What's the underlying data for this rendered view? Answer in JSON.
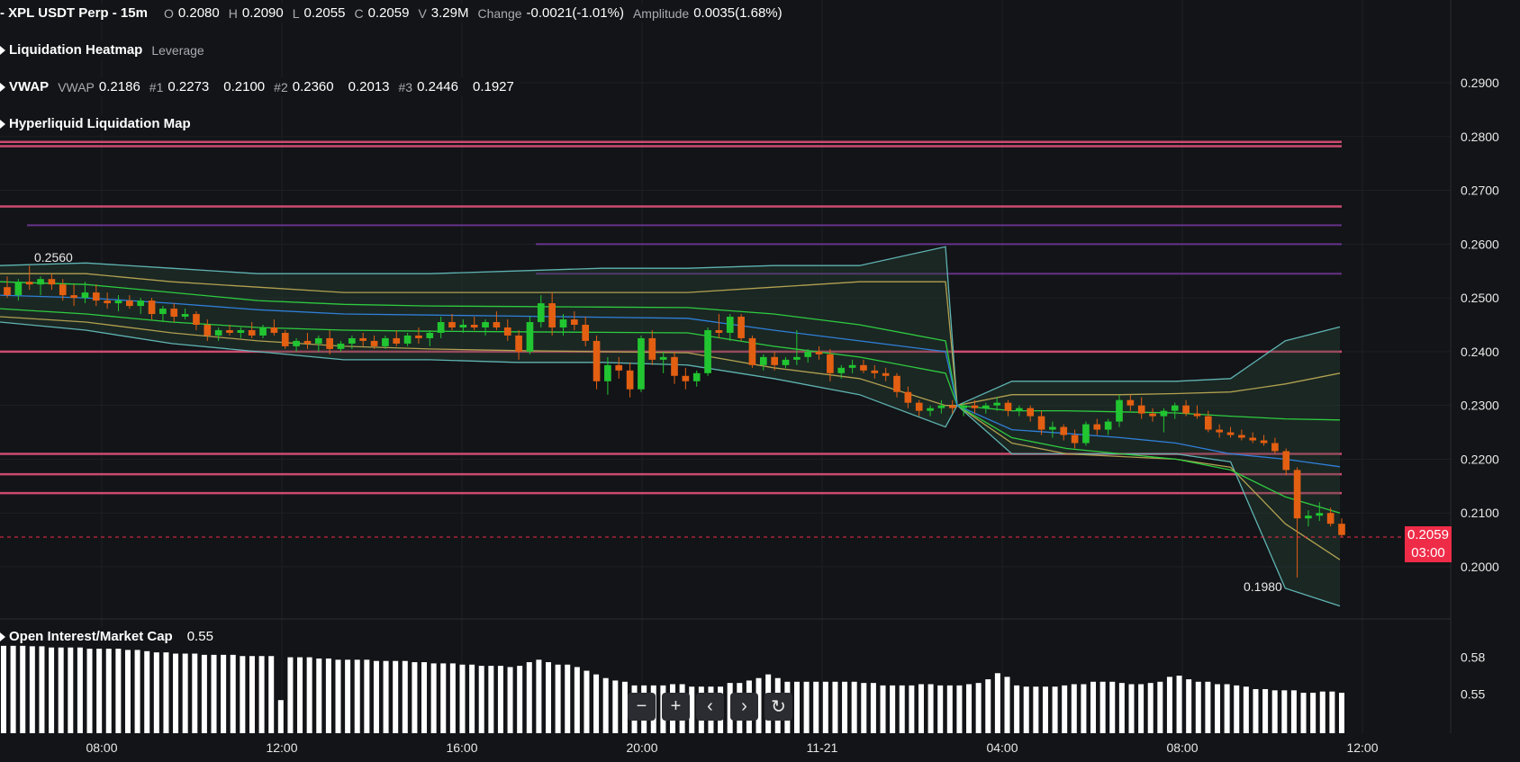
{
  "header": {
    "symbol": "XPL USDT Perp - 15m",
    "open_label": "O",
    "open": "0.2080",
    "high_label": "H",
    "high": "0.2090",
    "low_label": "L",
    "low": "0.2055",
    "close_label": "C",
    "close": "0.2059",
    "volume_label": "V",
    "volume": "3.29M",
    "change_label": "Change",
    "change": "-0.0021(-1.01%)",
    "amplitude_label": "Amplitude",
    "amplitude": "0.0035(1.68%)"
  },
  "indicators": {
    "liq_heatmap": {
      "name": "Liquidation Heatmap",
      "param": "Leverage"
    },
    "vwap": {
      "name": "VWAP",
      "vwap_label": "VWAP",
      "vwap": "0.2186",
      "b1_label": "#1",
      "b1_upper": "0.2273",
      "b1_lower": "0.2100",
      "b2_label": "#2",
      "b2_upper": "0.2360",
      "b2_lower": "0.2013",
      "b3_label": "#3",
      "b3_upper": "0.2446",
      "b3_lower": "0.1927"
    },
    "hl_liq_map": {
      "name": "Hyperliquid Liquidation Map"
    },
    "oi_mc": {
      "name": "Open Interest/Market Cap",
      "value": "0.55"
    }
  },
  "price_axis": {
    "ticks": [
      "0.2900",
      "0.2800",
      "0.2700",
      "0.2600",
      "0.2500",
      "0.2400",
      "0.2300",
      "0.2200",
      "0.2100",
      "0.2000"
    ],
    "current_price": "0.2059",
    "countdown": "03:00"
  },
  "oi_axis": {
    "ticks": [
      "0.58",
      "0.55"
    ]
  },
  "time_axis": {
    "ticks": [
      "08:00",
      "12:00",
      "16:00",
      "20:00",
      "11-21",
      "04:00",
      "08:00",
      "12:00"
    ]
  },
  "annotations": {
    "high_label": "0.2560",
    "low_label": "0.1980"
  },
  "nav_buttons": {
    "zoom_out": "−",
    "zoom_in": "+",
    "scroll_left": "‹",
    "scroll_right": "›",
    "reset": "↻"
  },
  "colors": {
    "background": "#131417",
    "up": "#21c531",
    "down": "#e35f12",
    "liq_line_strong": "#e0527a",
    "liq_line_purple": "#7a3aa6",
    "current_price": "#ef2c48",
    "vwap_mid": "#2f7fd8",
    "vwap_band1": "#2ecc40",
    "vwap_band2": "#b0a050",
    "vwap_band3": "#5fb3b3"
  },
  "chart_data": {
    "type": "candlestick",
    "title": "",
    "candles": [
      {
        "o": 0.252,
        "h": 0.254,
        "l": 0.25,
        "c": 0.2505
      },
      {
        "o": 0.2505,
        "h": 0.2535,
        "l": 0.2495,
        "c": 0.253
      },
      {
        "o": 0.253,
        "h": 0.256,
        "l": 0.2515,
        "c": 0.2525
      },
      {
        "o": 0.2525,
        "h": 0.254,
        "l": 0.2505,
        "c": 0.2535
      },
      {
        "o": 0.2535,
        "h": 0.2545,
        "l": 0.2515,
        "c": 0.2525
      },
      {
        "o": 0.2525,
        "h": 0.2535,
        "l": 0.2495,
        "c": 0.2505
      },
      {
        "o": 0.2505,
        "h": 0.2525,
        "l": 0.2485,
        "c": 0.25
      },
      {
        "o": 0.25,
        "h": 0.253,
        "l": 0.249,
        "c": 0.251
      },
      {
        "o": 0.251,
        "h": 0.2525,
        "l": 0.2485,
        "c": 0.2495
      },
      {
        "o": 0.2495,
        "h": 0.251,
        "l": 0.248,
        "c": 0.249
      },
      {
        "o": 0.249,
        "h": 0.2505,
        "l": 0.2475,
        "c": 0.2495
      },
      {
        "o": 0.2495,
        "h": 0.2505,
        "l": 0.248,
        "c": 0.2485
      },
      {
        "o": 0.2485,
        "h": 0.25,
        "l": 0.247,
        "c": 0.2495
      },
      {
        "o": 0.2495,
        "h": 0.25,
        "l": 0.246,
        "c": 0.247
      },
      {
        "o": 0.247,
        "h": 0.2485,
        "l": 0.2455,
        "c": 0.248
      },
      {
        "o": 0.248,
        "h": 0.249,
        "l": 0.2455,
        "c": 0.2465
      },
      {
        "o": 0.2465,
        "h": 0.248,
        "l": 0.246,
        "c": 0.247
      },
      {
        "o": 0.247,
        "h": 0.2475,
        "l": 0.244,
        "c": 0.245
      },
      {
        "o": 0.245,
        "h": 0.246,
        "l": 0.242,
        "c": 0.243
      },
      {
        "o": 0.243,
        "h": 0.2445,
        "l": 0.242,
        "c": 0.244
      },
      {
        "o": 0.244,
        "h": 0.245,
        "l": 0.243,
        "c": 0.2435
      },
      {
        "o": 0.2435,
        "h": 0.2445,
        "l": 0.2425,
        "c": 0.244
      },
      {
        "o": 0.244,
        "h": 0.2455,
        "l": 0.2425,
        "c": 0.243
      },
      {
        "o": 0.243,
        "h": 0.245,
        "l": 0.2425,
        "c": 0.2445
      },
      {
        "o": 0.2445,
        "h": 0.246,
        "l": 0.243,
        "c": 0.2435
      },
      {
        "o": 0.2435,
        "h": 0.244,
        "l": 0.2405,
        "c": 0.241
      },
      {
        "o": 0.241,
        "h": 0.2425,
        "l": 0.24,
        "c": 0.242
      },
      {
        "o": 0.242,
        "h": 0.2435,
        "l": 0.2405,
        "c": 0.2415
      },
      {
        "o": 0.2415,
        "h": 0.243,
        "l": 0.24,
        "c": 0.2425
      },
      {
        "o": 0.2425,
        "h": 0.244,
        "l": 0.2395,
        "c": 0.2405
      },
      {
        "o": 0.2405,
        "h": 0.242,
        "l": 0.24,
        "c": 0.2415
      },
      {
        "o": 0.2415,
        "h": 0.243,
        "l": 0.2405,
        "c": 0.2425
      },
      {
        "o": 0.2425,
        "h": 0.2435,
        "l": 0.241,
        "c": 0.242
      },
      {
        "o": 0.242,
        "h": 0.243,
        "l": 0.2405,
        "c": 0.241
      },
      {
        "o": 0.241,
        "h": 0.243,
        "l": 0.2405,
        "c": 0.2425
      },
      {
        "o": 0.2425,
        "h": 0.244,
        "l": 0.241,
        "c": 0.2415
      },
      {
        "o": 0.2415,
        "h": 0.2435,
        "l": 0.241,
        "c": 0.243
      },
      {
        "o": 0.243,
        "h": 0.2445,
        "l": 0.2415,
        "c": 0.2425
      },
      {
        "o": 0.2425,
        "h": 0.244,
        "l": 0.241,
        "c": 0.2435
      },
      {
        "o": 0.2435,
        "h": 0.2465,
        "l": 0.2425,
        "c": 0.2455
      },
      {
        "o": 0.2455,
        "h": 0.247,
        "l": 0.244,
        "c": 0.2445
      },
      {
        "o": 0.2445,
        "h": 0.246,
        "l": 0.2435,
        "c": 0.245
      },
      {
        "o": 0.245,
        "h": 0.2465,
        "l": 0.244,
        "c": 0.2445
      },
      {
        "o": 0.2445,
        "h": 0.246,
        "l": 0.243,
        "c": 0.2455
      },
      {
        "o": 0.2455,
        "h": 0.2475,
        "l": 0.244,
        "c": 0.2445
      },
      {
        "o": 0.2445,
        "h": 0.246,
        "l": 0.242,
        "c": 0.243
      },
      {
        "o": 0.243,
        "h": 0.244,
        "l": 0.2385,
        "c": 0.24
      },
      {
        "o": 0.24,
        "h": 0.2465,
        "l": 0.2395,
        "c": 0.2455
      },
      {
        "o": 0.2455,
        "h": 0.2505,
        "l": 0.2445,
        "c": 0.249
      },
      {
        "o": 0.249,
        "h": 0.251,
        "l": 0.243,
        "c": 0.2445
      },
      {
        "o": 0.2445,
        "h": 0.247,
        "l": 0.243,
        "c": 0.246
      },
      {
        "o": 0.246,
        "h": 0.2475,
        "l": 0.244,
        "c": 0.245
      },
      {
        "o": 0.245,
        "h": 0.2465,
        "l": 0.241,
        "c": 0.242
      },
      {
        "o": 0.242,
        "h": 0.243,
        "l": 0.233,
        "c": 0.2345
      },
      {
        "o": 0.2345,
        "h": 0.239,
        "l": 0.232,
        "c": 0.2375
      },
      {
        "o": 0.2375,
        "h": 0.239,
        "l": 0.235,
        "c": 0.2365
      },
      {
        "o": 0.2365,
        "h": 0.238,
        "l": 0.2315,
        "c": 0.233
      },
      {
        "o": 0.233,
        "h": 0.243,
        "l": 0.2325,
        "c": 0.2425
      },
      {
        "o": 0.2425,
        "h": 0.244,
        "l": 0.2375,
        "c": 0.2385
      },
      {
        "o": 0.2385,
        "h": 0.24,
        "l": 0.236,
        "c": 0.239
      },
      {
        "o": 0.239,
        "h": 0.24,
        "l": 0.234,
        "c": 0.2355
      },
      {
        "o": 0.2355,
        "h": 0.237,
        "l": 0.233,
        "c": 0.2345
      },
      {
        "o": 0.2345,
        "h": 0.2365,
        "l": 0.2335,
        "c": 0.236
      },
      {
        "o": 0.236,
        "h": 0.2445,
        "l": 0.2355,
        "c": 0.244
      },
      {
        "o": 0.244,
        "h": 0.247,
        "l": 0.2425,
        "c": 0.2435
      },
      {
        "o": 0.2435,
        "h": 0.247,
        "l": 0.242,
        "c": 0.2465
      },
      {
        "o": 0.2465,
        "h": 0.247,
        "l": 0.242,
        "c": 0.2425
      },
      {
        "o": 0.2425,
        "h": 0.243,
        "l": 0.237,
        "c": 0.2375
      },
      {
        "o": 0.2375,
        "h": 0.2395,
        "l": 0.2365,
        "c": 0.239
      },
      {
        "o": 0.239,
        "h": 0.24,
        "l": 0.2365,
        "c": 0.2375
      },
      {
        "o": 0.2375,
        "h": 0.239,
        "l": 0.237,
        "c": 0.2385
      },
      {
        "o": 0.2385,
        "h": 0.244,
        "l": 0.2375,
        "c": 0.239
      },
      {
        "o": 0.239,
        "h": 0.2405,
        "l": 0.238,
        "c": 0.24
      },
      {
        "o": 0.24,
        "h": 0.241,
        "l": 0.2385,
        "c": 0.2395
      },
      {
        "o": 0.2395,
        "h": 0.2405,
        "l": 0.2345,
        "c": 0.236
      },
      {
        "o": 0.236,
        "h": 0.2375,
        "l": 0.235,
        "c": 0.237
      },
      {
        "o": 0.237,
        "h": 0.2385,
        "l": 0.236,
        "c": 0.2375
      },
      {
        "o": 0.2375,
        "h": 0.2385,
        "l": 0.236,
        "c": 0.2365
      },
      {
        "o": 0.2365,
        "h": 0.2375,
        "l": 0.235,
        "c": 0.236
      },
      {
        "o": 0.236,
        "h": 0.237,
        "l": 0.2345,
        "c": 0.2355
      },
      {
        "o": 0.2355,
        "h": 0.236,
        "l": 0.2315,
        "c": 0.2325
      },
      {
        "o": 0.2325,
        "h": 0.2335,
        "l": 0.2295,
        "c": 0.2305
      },
      {
        "o": 0.2305,
        "h": 0.231,
        "l": 0.228,
        "c": 0.229
      },
      {
        "o": 0.229,
        "h": 0.23,
        "l": 0.228,
        "c": 0.2295
      },
      {
        "o": 0.2295,
        "h": 0.231,
        "l": 0.2285,
        "c": 0.23
      },
      {
        "o": 0.23,
        "h": 0.231,
        "l": 0.2285,
        "c": 0.2295
      },
      {
        "o": 0.2295,
        "h": 0.2305,
        "l": 0.228,
        "c": 0.23
      },
      {
        "o": 0.23,
        "h": 0.231,
        "l": 0.2285,
        "c": 0.2295
      },
      {
        "o": 0.2295,
        "h": 0.2305,
        "l": 0.2285,
        "c": 0.23
      },
      {
        "o": 0.23,
        "h": 0.2315,
        "l": 0.229,
        "c": 0.2305
      },
      {
        "o": 0.2305,
        "h": 0.231,
        "l": 0.228,
        "c": 0.229
      },
      {
        "o": 0.229,
        "h": 0.23,
        "l": 0.228,
        "c": 0.2295
      },
      {
        "o": 0.2295,
        "h": 0.23,
        "l": 0.227,
        "c": 0.228
      },
      {
        "o": 0.228,
        "h": 0.229,
        "l": 0.2245,
        "c": 0.2255
      },
      {
        "o": 0.2255,
        "h": 0.227,
        "l": 0.224,
        "c": 0.226
      },
      {
        "o": 0.226,
        "h": 0.2265,
        "l": 0.2235,
        "c": 0.2245
      },
      {
        "o": 0.2245,
        "h": 0.2255,
        "l": 0.222,
        "c": 0.223
      },
      {
        "o": 0.223,
        "h": 0.227,
        "l": 0.2225,
        "c": 0.2265
      },
      {
        "o": 0.2265,
        "h": 0.2275,
        "l": 0.2245,
        "c": 0.2255
      },
      {
        "o": 0.2255,
        "h": 0.2275,
        "l": 0.2245,
        "c": 0.227
      },
      {
        "o": 0.227,
        "h": 0.232,
        "l": 0.226,
        "c": 0.231
      },
      {
        "o": 0.231,
        "h": 0.232,
        "l": 0.229,
        "c": 0.23
      },
      {
        "o": 0.23,
        "h": 0.2315,
        "l": 0.2275,
        "c": 0.2285
      },
      {
        "o": 0.2285,
        "h": 0.2295,
        "l": 0.227,
        "c": 0.228
      },
      {
        "o": 0.228,
        "h": 0.2295,
        "l": 0.225,
        "c": 0.229
      },
      {
        "o": 0.229,
        "h": 0.2305,
        "l": 0.2275,
        "c": 0.23
      },
      {
        "o": 0.23,
        "h": 0.231,
        "l": 0.228,
        "c": 0.2285
      },
      {
        "o": 0.2285,
        "h": 0.23,
        "l": 0.2275,
        "c": 0.228
      },
      {
        "o": 0.228,
        "h": 0.229,
        "l": 0.225,
        "c": 0.2255
      },
      {
        "o": 0.2255,
        "h": 0.2265,
        "l": 0.224,
        "c": 0.225
      },
      {
        "o": 0.225,
        "h": 0.226,
        "l": 0.224,
        "c": 0.2245
      },
      {
        "o": 0.2245,
        "h": 0.2255,
        "l": 0.2235,
        "c": 0.224
      },
      {
        "o": 0.224,
        "h": 0.225,
        "l": 0.223,
        "c": 0.2235
      },
      {
        "o": 0.2235,
        "h": 0.2245,
        "l": 0.2225,
        "c": 0.223
      },
      {
        "o": 0.223,
        "h": 0.224,
        "l": 0.221,
        "c": 0.2215
      },
      {
        "o": 0.2215,
        "h": 0.222,
        "l": 0.217,
        "c": 0.218
      },
      {
        "o": 0.218,
        "h": 0.2185,
        "l": 0.198,
        "c": 0.209
      },
      {
        "o": 0.209,
        "h": 0.2105,
        "l": 0.2075,
        "c": 0.2095
      },
      {
        "o": 0.2095,
        "h": 0.212,
        "l": 0.2085,
        "c": 0.21
      },
      {
        "o": 0.21,
        "h": 0.211,
        "l": 0.2075,
        "c": 0.208
      },
      {
        "o": 0.208,
        "h": 0.209,
        "l": 0.2055,
        "c": 0.2059
      }
    ],
    "vwap_bands": {
      "mid": [
        0.2505,
        0.25,
        0.249,
        0.2478,
        0.247,
        0.2468,
        0.2466,
        0.2464,
        0.2462,
        0.244,
        0.242,
        0.24,
        0.23,
        0.2255,
        0.2248,
        0.224,
        0.223,
        0.221,
        0.22,
        0.2186
      ],
      "b1_up": [
        0.253,
        0.2525,
        0.251,
        0.2495,
        0.2488,
        0.2485,
        0.2484,
        0.2483,
        0.2482,
        0.247,
        0.245,
        0.242,
        0.23,
        0.229,
        0.229,
        0.2288,
        0.2286,
        0.228,
        0.2275,
        0.2273
      ],
      "b1_dn": [
        0.248,
        0.247,
        0.2455,
        0.2445,
        0.244,
        0.2438,
        0.2437,
        0.2436,
        0.2435,
        0.241,
        0.239,
        0.236,
        0.23,
        0.224,
        0.222,
        0.221,
        0.22,
        0.218,
        0.213,
        0.21
      ],
      "b2_up": [
        0.2545,
        0.2545,
        0.253,
        0.252,
        0.251,
        0.251,
        0.251,
        0.251,
        0.251,
        0.252,
        0.253,
        0.253,
        0.23,
        0.232,
        0.232,
        0.232,
        0.2322,
        0.2325,
        0.234,
        0.236
      ],
      "b2_dn": [
        0.2465,
        0.2455,
        0.2435,
        0.242,
        0.241,
        0.2405,
        0.2402,
        0.24,
        0.2398,
        0.237,
        0.235,
        0.23,
        0.23,
        0.223,
        0.221,
        0.2205,
        0.22,
        0.2185,
        0.208,
        0.2013
      ],
      "b3_up": [
        0.256,
        0.2565,
        0.2555,
        0.2545,
        0.2545,
        0.2545,
        0.255,
        0.2555,
        0.2555,
        0.256,
        0.256,
        0.2595,
        0.23,
        0.2345,
        0.2345,
        0.2345,
        0.2345,
        0.235,
        0.242,
        0.2446
      ],
      "b3_dn": [
        0.2455,
        0.244,
        0.2415,
        0.24,
        0.2385,
        0.2385,
        0.238,
        0.238,
        0.2375,
        0.235,
        0.232,
        0.226,
        0.23,
        0.221,
        0.221,
        0.221,
        0.221,
        0.2195,
        0.196,
        0.1927
      ]
    },
    "liquidation_lines": [
      {
        "price": 0.279,
        "strength": "strong"
      },
      {
        "price": 0.2782,
        "strength": "strong"
      },
      {
        "price": 0.267,
        "strength": "strong"
      },
      {
        "price": 0.2635,
        "strength": "medium"
      },
      {
        "price": 0.26,
        "strength": "medium"
      },
      {
        "price": 0.2545,
        "strength": "medium"
      },
      {
        "price": 0.24,
        "strength": "strong"
      },
      {
        "price": 0.221,
        "strength": "strong"
      },
      {
        "price": 0.2172,
        "strength": "strong"
      },
      {
        "price": 0.2137,
        "strength": "strong"
      }
    ],
    "open_interest_mc": [
      0.59,
      0.59,
      0.59,
      0.589,
      0.589,
      0.588,
      0.588,
      0.588,
      0.588,
      0.587,
      0.587,
      0.587,
      0.587,
      0.586,
      0.586,
      0.585,
      0.584,
      0.584,
      0.583,
      0.583,
      0.583,
      0.582,
      0.582,
      0.582,
      0.582,
      0.581,
      0.581,
      0.581,
      0.581,
      0.545,
      0.58,
      0.58,
      0.58,
      0.579,
      0.579,
      0.578,
      0.578,
      0.578,
      0.578,
      0.577,
      0.577,
      0.577,
      0.577,
      0.576,
      0.576,
      0.575,
      0.575,
      0.575,
      0.574,
      0.574,
      0.573,
      0.573,
      0.573,
      0.572,
      0.573,
      0.576,
      0.578,
      0.576,
      0.574,
      0.574,
      0.572,
      0.569,
      0.566,
      0.563,
      0.561,
      0.56,
      0.557,
      0.557,
      0.557,
      0.557,
      0.558,
      0.558,
      0.556,
      0.556,
      0.556,
      0.556,
      0.559,
      0.559,
      0.561,
      0.563,
      0.566,
      0.563,
      0.56,
      0.56,
      0.56,
      0.56,
      0.56,
      0.56,
      0.56,
      0.56,
      0.559,
      0.559,
      0.557,
      0.557,
      0.557,
      0.557,
      0.558,
      0.558,
      0.557,
      0.557,
      0.557,
      0.558,
      0.559,
      0.562,
      0.567,
      0.564,
      0.557,
      0.556,
      0.556,
      0.556,
      0.556,
      0.557,
      0.558,
      0.558,
      0.56,
      0.56,
      0.56,
      0.559,
      0.558,
      0.558,
      0.559,
      0.56,
      0.564,
      0.565,
      0.562,
      0.56,
      0.56,
      0.558,
      0.558,
      0.557,
      0.556,
      0.554,
      0.554,
      0.553,
      0.553,
      0.553,
      0.551,
      0.551,
      0.552,
      0.552,
      0.551
    ]
  }
}
